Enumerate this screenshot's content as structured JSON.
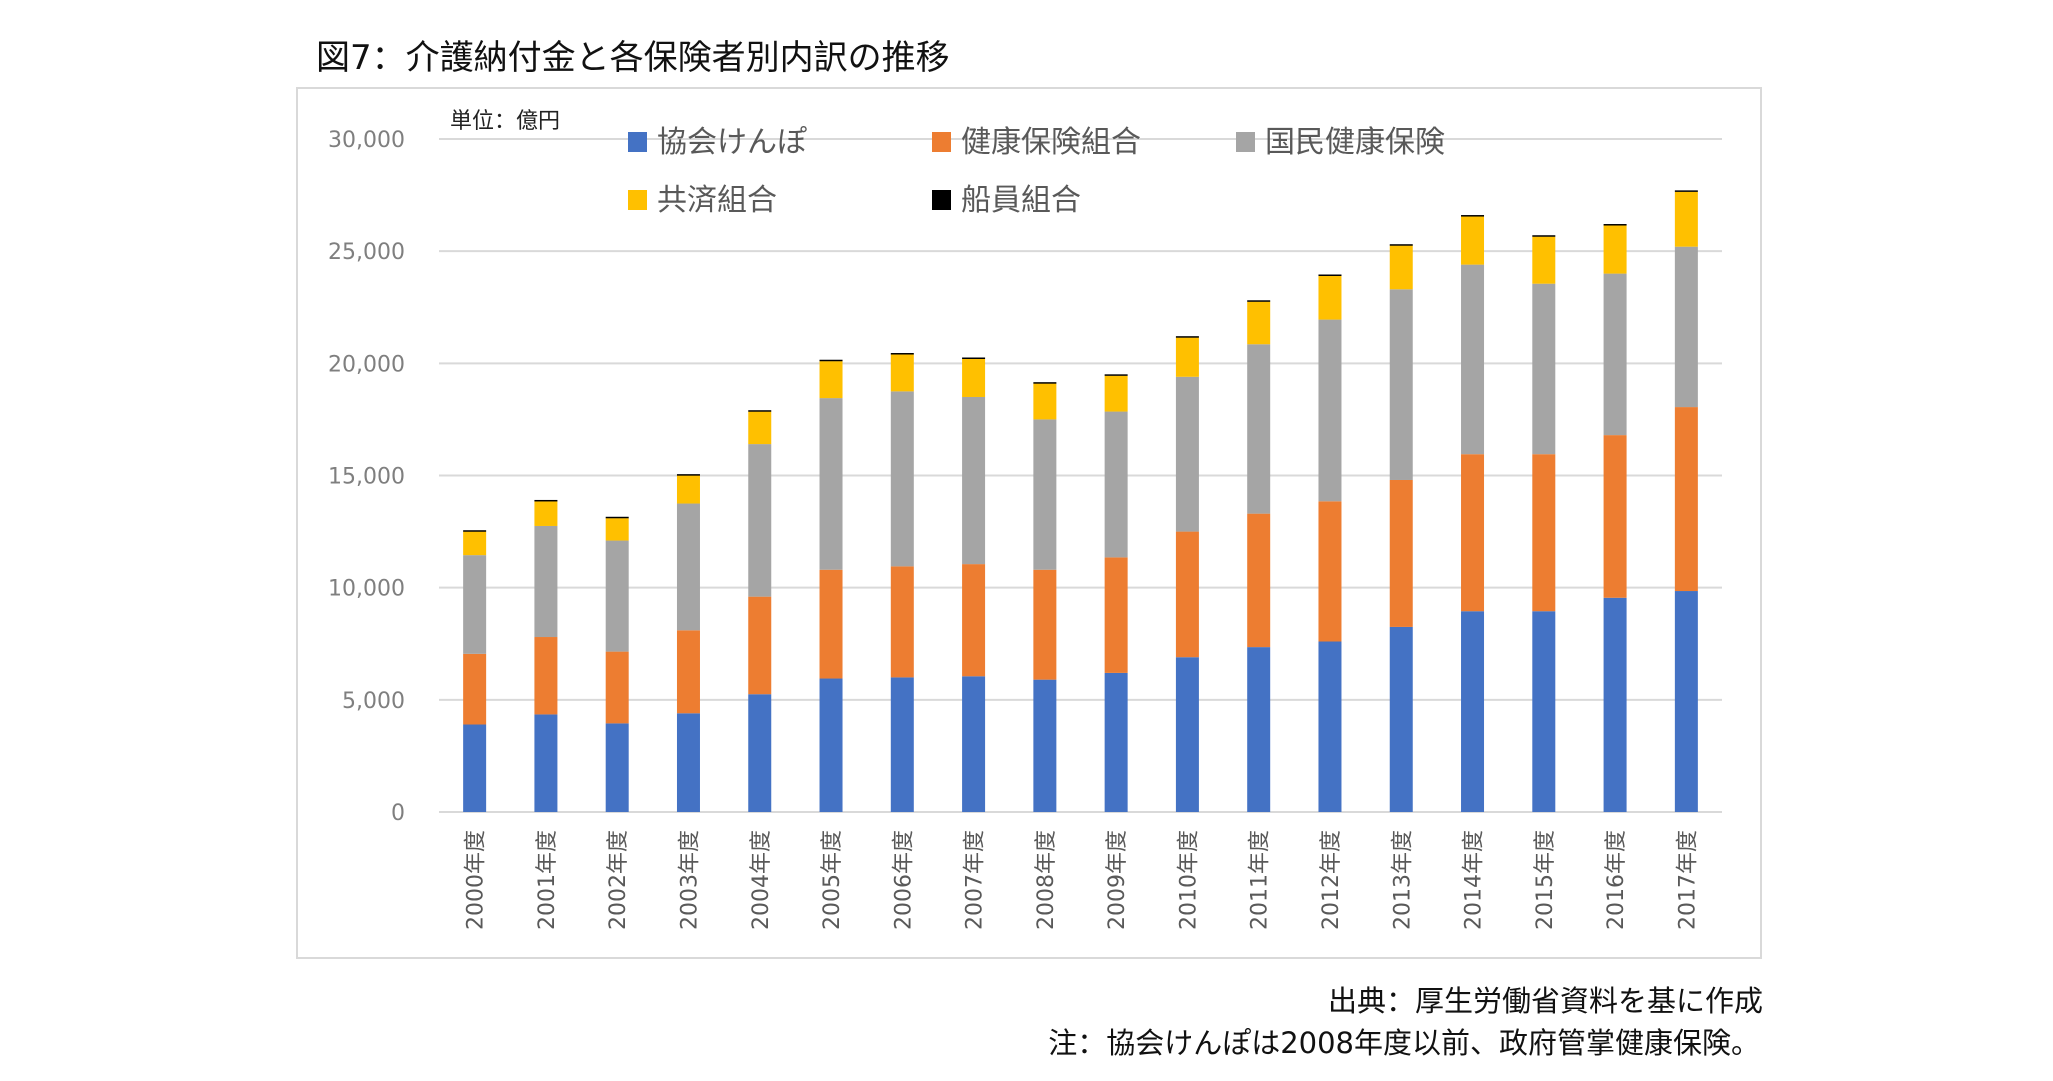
{
  "figure_title": "図7：介護納付金と各保険者別内訳の推移",
  "unit_label": "単位：億円",
  "source": "出典：厚生労働省資料を基に作成",
  "note": "注：協会けんぽは2008年度以前、政府管掌健康保険。",
  "chart_data": {
    "type": "bar",
    "stacked": true,
    "title": "介護納付金と各保険者別内訳の推移",
    "xlabel": "",
    "ylabel": "億円",
    "ylim": [
      0,
      30000
    ],
    "yticks": [
      0,
      5000,
      10000,
      15000,
      20000,
      25000,
      30000
    ],
    "ytick_labels": [
      "0",
      "5,000",
      "10,000",
      "15,000",
      "20,000",
      "25,000",
      "30,000"
    ],
    "grid": true,
    "legend_position": "top",
    "categories": [
      "2000年度",
      "2001年度",
      "2002年度",
      "2003年度",
      "2004年度",
      "2005年度",
      "2006年度",
      "2007年度",
      "2008年度",
      "2009年度",
      "2010年度",
      "2011年度",
      "2012年度",
      "2013年度",
      "2014年度",
      "2015年度",
      "2016年度",
      "2017年度"
    ],
    "series": [
      {
        "name": "協会けんぽ",
        "color": "#4472c4",
        "values": [
          3900,
          4350,
          3950,
          4400,
          5250,
          5950,
          6000,
          6050,
          5900,
          6200,
          6900,
          7350,
          7600,
          8250,
          8950,
          8950,
          9550,
          9850
        ]
      },
      {
        "name": "健康保険組合",
        "color": "#ed7d31",
        "values": [
          3150,
          3450,
          3200,
          3700,
          4350,
          4850,
          4950,
          5000,
          4900,
          5150,
          5600,
          5950,
          6250,
          6550,
          7000,
          7000,
          7250,
          8200
        ]
      },
      {
        "name": "国民健康保険",
        "color": "#a5a5a5",
        "values": [
          4400,
          4950,
          4950,
          5650,
          6800,
          7650,
          7800,
          7450,
          6700,
          6500,
          6900,
          7550,
          8100,
          8500,
          8450,
          7600,
          7200,
          7150
        ]
      },
      {
        "name": "共済組合",
        "color": "#ffc000",
        "values": [
          1050,
          1100,
          1000,
          1250,
          1450,
          1650,
          1650,
          1700,
          1600,
          1600,
          1750,
          1900,
          1950,
          1950,
          2150,
          2100,
          2150,
          2450
        ]
      },
      {
        "name": "船員組合",
        "color": "#000000",
        "values": [
          60,
          60,
          60,
          60,
          60,
          60,
          60,
          60,
          60,
          60,
          60,
          60,
          60,
          60,
          60,
          60,
          60,
          60
        ]
      }
    ],
    "legend": [
      {
        "label": "協会けんぽ",
        "color": "#4472c4"
      },
      {
        "label": "健康保険組合",
        "color": "#ed7d31"
      },
      {
        "label": "国民健康保険",
        "color": "#a5a5a5"
      },
      {
        "label": "共済組合",
        "color": "#ffc000"
      },
      {
        "label": "船員組合",
        "color": "#000000"
      }
    ]
  }
}
